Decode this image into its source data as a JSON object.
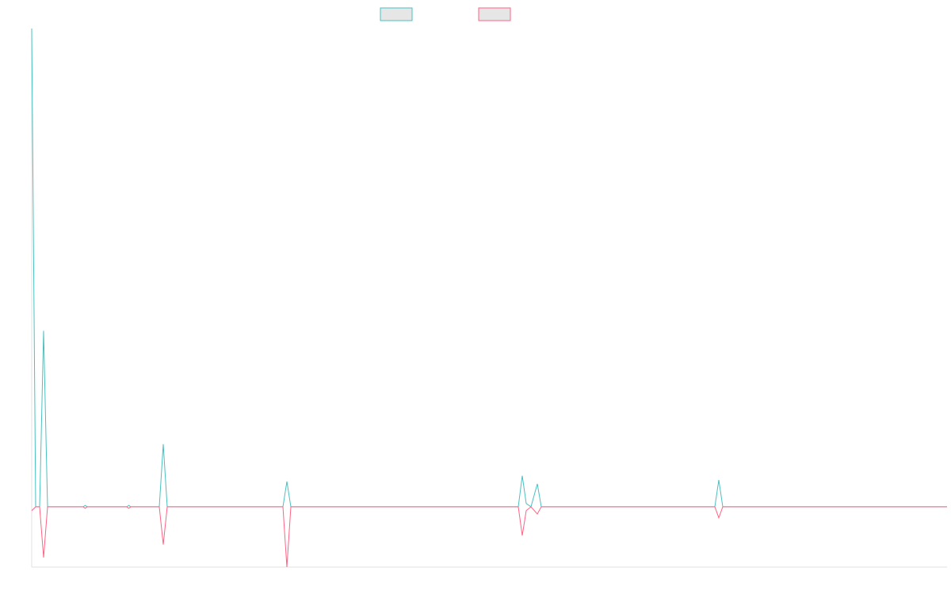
{
  "chart_data": {
    "type": "line",
    "x": [
      0,
      1,
      2,
      3,
      4,
      13,
      13.5,
      14,
      24,
      24.5,
      25,
      32.2,
      33.2,
      34.2,
      63.4,
      64.4,
      65.4,
      122.8,
      123.8,
      124.8,
      126,
      127.6,
      128.6,
      172.4,
      173.4,
      174.4,
      231
    ],
    "series": [
      {
        "color": "#4bc0c0",
        "values": [
          100,
          0,
          0,
          36.8,
          0,
          0,
          0.3,
          0,
          0,
          0.3,
          0,
          0,
          13.1,
          0,
          0,
          5.3,
          0,
          0,
          6.5,
          0.7,
          0,
          4.8,
          0,
          0,
          5.6,
          0,
          0
        ]
      },
      {
        "color": "#ff6384",
        "values": [
          -0.8,
          0,
          0,
          -10.6,
          0,
          0,
          -0.3,
          0,
          0,
          -0.3,
          0,
          0,
          -7.9,
          0,
          0,
          -12.6,
          0,
          0,
          -6,
          -0.8,
          0,
          -1.5,
          0,
          0,
          -2.3,
          0,
          0
        ]
      }
    ],
    "xlim": [
      0,
      231
    ],
    "ylim": [
      -12.6,
      100
    ]
  }
}
